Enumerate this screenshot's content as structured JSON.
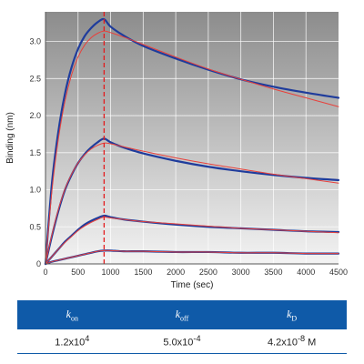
{
  "chart_data": {
    "type": "line",
    "title": "",
    "xlabel": "Time (sec)",
    "ylabel": "Binding (nm)",
    "xlim": [
      0,
      4500
    ],
    "ylim": [
      0,
      3.4
    ],
    "xticks": [
      "0",
      "500",
      "1000",
      "1500",
      "2000",
      "2500",
      "3000",
      "3500",
      "4000",
      "4500"
    ],
    "yticks": [
      "0",
      "0.5",
      "1.0",
      "1.5",
      "2.0",
      "2.5",
      "3.0"
    ],
    "grid": true,
    "legend": "none",
    "dissociation_start": 900,
    "colors": {
      "measured": "#1f3c9c",
      "fit": "#e8413c",
      "marker_line": "#e31a1c",
      "plot_bg_top": "#8c8c8c",
      "plot_bg_bottom": "#f3f3f3"
    },
    "series": [
      {
        "role": "measured",
        "x": [
          0,
          100,
          200,
          300,
          400,
          500,
          600,
          700,
          800,
          900,
          1000,
          1200,
          1500,
          2000,
          2500,
          3000,
          3500,
          4000,
          4500
        ],
        "y": [
          0,
          1.1,
          1.8,
          2.3,
          2.65,
          2.9,
          3.07,
          3.18,
          3.26,
          3.3,
          3.2,
          3.08,
          2.94,
          2.77,
          2.62,
          2.49,
          2.39,
          2.31,
          2.24
        ]
      },
      {
        "role": "fit",
        "x": [
          0,
          100,
          200,
          300,
          400,
          500,
          600,
          700,
          800,
          900,
          1000,
          1200,
          1500,
          2000,
          2500,
          3000,
          3500,
          4000,
          4500
        ],
        "y": [
          0,
          1.0,
          1.7,
          2.2,
          2.55,
          2.79,
          2.95,
          3.05,
          3.11,
          3.14,
          3.12,
          3.06,
          2.96,
          2.79,
          2.63,
          2.49,
          2.36,
          2.24,
          2.12
        ]
      },
      {
        "role": "measured",
        "x": [
          0,
          100,
          200,
          300,
          400,
          500,
          600,
          700,
          800,
          900,
          1000,
          1200,
          1500,
          2000,
          2500,
          3000,
          3500,
          4000,
          4500
        ],
        "y": [
          0,
          0.38,
          0.72,
          1.0,
          1.2,
          1.36,
          1.48,
          1.57,
          1.64,
          1.69,
          1.64,
          1.57,
          1.49,
          1.39,
          1.31,
          1.25,
          1.2,
          1.16,
          1.13
        ]
      },
      {
        "role": "fit",
        "x": [
          0,
          100,
          200,
          300,
          400,
          500,
          600,
          700,
          800,
          900,
          1000,
          1200,
          1500,
          2000,
          2500,
          3000,
          3500,
          4000,
          4500
        ],
        "y": [
          0,
          0.4,
          0.74,
          1.01,
          1.21,
          1.36,
          1.47,
          1.55,
          1.6,
          1.63,
          1.62,
          1.58,
          1.52,
          1.43,
          1.35,
          1.28,
          1.21,
          1.15,
          1.09
        ]
      },
      {
        "role": "measured",
        "x": [
          0,
          100,
          200,
          300,
          400,
          500,
          600,
          700,
          800,
          900,
          1000,
          1200,
          1500,
          2000,
          2500,
          3000,
          3500,
          4000,
          4500
        ],
        "y": [
          0,
          0.1,
          0.2,
          0.3,
          0.38,
          0.46,
          0.53,
          0.58,
          0.62,
          0.65,
          0.63,
          0.6,
          0.57,
          0.53,
          0.5,
          0.48,
          0.46,
          0.44,
          0.43
        ]
      },
      {
        "role": "fit",
        "x": [
          0,
          100,
          200,
          300,
          400,
          500,
          600,
          700,
          800,
          900,
          1000,
          1200,
          1500,
          2000,
          2500,
          3000,
          3500,
          4000,
          4500
        ],
        "y": [
          0,
          0.1,
          0.2,
          0.29,
          0.37,
          0.45,
          0.51,
          0.56,
          0.6,
          0.63,
          0.62,
          0.6,
          0.57,
          0.54,
          0.51,
          0.48,
          0.46,
          0.44,
          0.42
        ]
      },
      {
        "role": "measured",
        "x": [
          0,
          100,
          200,
          300,
          400,
          500,
          600,
          700,
          800,
          900,
          1000,
          1200,
          1500,
          2000,
          2500,
          3000,
          3500,
          4000,
          4500
        ],
        "y": [
          0,
          0.03,
          0.05,
          0.07,
          0.09,
          0.11,
          0.13,
          0.15,
          0.17,
          0.18,
          0.18,
          0.17,
          0.17,
          0.16,
          0.16,
          0.15,
          0.15,
          0.14,
          0.14
        ]
      },
      {
        "role": "fit",
        "x": [
          0,
          100,
          200,
          300,
          400,
          500,
          600,
          700,
          800,
          900,
          1000,
          1200,
          1500,
          2000,
          2500,
          3000,
          3500,
          4000,
          4500
        ],
        "y": [
          0,
          0.03,
          0.05,
          0.07,
          0.09,
          0.11,
          0.13,
          0.15,
          0.17,
          0.18,
          0.18,
          0.17,
          0.17,
          0.16,
          0.16,
          0.15,
          0.15,
          0.14,
          0.14
        ]
      }
    ]
  },
  "table": {
    "headers": [
      {
        "symbol": "k",
        "subscript": "on"
      },
      {
        "symbol": "k",
        "subscript": "off"
      },
      {
        "symbol": "k",
        "subscript": "D"
      }
    ],
    "values": [
      {
        "mantissa": "1.2x10",
        "exponent": "4",
        "unit": ""
      },
      {
        "mantissa": "5.0x10",
        "exponent": "-4",
        "unit": ""
      },
      {
        "mantissa": "4.2x10",
        "exponent": "-8",
        "unit": " M"
      }
    ]
  }
}
